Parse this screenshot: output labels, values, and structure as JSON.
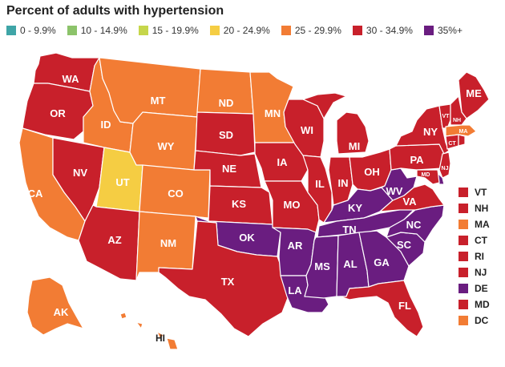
{
  "title": "Percent of adults with hypertension",
  "legend": [
    {
      "label": "0 - 9.9%",
      "color": "#3fa5a7"
    },
    {
      "label": "10 - 14.9%",
      "color": "#8cc36a"
    },
    {
      "label": "15 - 19.9%",
      "color": "#c6d64b"
    },
    {
      "label": "20 - 24.9%",
      "color": "#f5cd43"
    },
    {
      "label": "25 - 29.9%",
      "color": "#f27c34"
    },
    {
      "label": "30 - 34.9%",
      "color": "#c8202b"
    },
    {
      "label": "35%+",
      "color": "#6a1d80"
    }
  ],
  "small_states": [
    {
      "label": "VT",
      "color": "#c8202b"
    },
    {
      "label": "NH",
      "color": "#c8202b"
    },
    {
      "label": "MA",
      "color": "#f27c34"
    },
    {
      "label": "CT",
      "color": "#c8202b"
    },
    {
      "label": "RI",
      "color": "#c8202b"
    },
    {
      "label": "NJ",
      "color": "#c8202b"
    },
    {
      "label": "DE",
      "color": "#6a1d80"
    },
    {
      "label": "MD",
      "color": "#c8202b"
    },
    {
      "label": "DC",
      "color": "#f27c34"
    }
  ],
  "states": [
    {
      "id": "WA",
      "bin": 5
    },
    {
      "id": "OR",
      "bin": 5
    },
    {
      "id": "CA",
      "bin": 4
    },
    {
      "id": "NV",
      "bin": 5
    },
    {
      "id": "ID",
      "bin": 4
    },
    {
      "id": "MT",
      "bin": 4
    },
    {
      "id": "WY",
      "bin": 4
    },
    {
      "id": "UT",
      "bin": 3
    },
    {
      "id": "AZ",
      "bin": 5
    },
    {
      "id": "CO",
      "bin": 4
    },
    {
      "id": "NM",
      "bin": 4
    },
    {
      "id": "ND",
      "bin": 4
    },
    {
      "id": "SD",
      "bin": 5
    },
    {
      "id": "NE",
      "bin": 5
    },
    {
      "id": "KS",
      "bin": 5
    },
    {
      "id": "OK",
      "bin": 6
    },
    {
      "id": "TX",
      "bin": 5
    },
    {
      "id": "MN",
      "bin": 4
    },
    {
      "id": "IA",
      "bin": 5
    },
    {
      "id": "MO",
      "bin": 5
    },
    {
      "id": "AR",
      "bin": 6
    },
    {
      "id": "LA",
      "bin": 6
    },
    {
      "id": "WI",
      "bin": 5
    },
    {
      "id": "IL",
      "bin": 5
    },
    {
      "id": "MI",
      "bin": 5
    },
    {
      "id": "IN",
      "bin": 5
    },
    {
      "id": "OH",
      "bin": 5
    },
    {
      "id": "KY",
      "bin": 6
    },
    {
      "id": "TN",
      "bin": 6
    },
    {
      "id": "MS",
      "bin": 6
    },
    {
      "id": "AL",
      "bin": 6
    },
    {
      "id": "GA",
      "bin": 6
    },
    {
      "id": "FL",
      "bin": 5
    },
    {
      "id": "SC",
      "bin": 6
    },
    {
      "id": "NC",
      "bin": 6
    },
    {
      "id": "VA",
      "bin": 5
    },
    {
      "id": "WV",
      "bin": 6
    },
    {
      "id": "PA",
      "bin": 5
    },
    {
      "id": "NY",
      "bin": 5
    },
    {
      "id": "ME",
      "bin": 5
    },
    {
      "id": "VT",
      "bin": 5
    },
    {
      "id": "NH",
      "bin": 5
    },
    {
      "id": "MA",
      "bin": 4
    },
    {
      "id": "CT",
      "bin": 5
    },
    {
      "id": "RI",
      "bin": 5
    },
    {
      "id": "NJ",
      "bin": 5
    },
    {
      "id": "DE",
      "bin": 6
    },
    {
      "id": "MD",
      "bin": 5
    },
    {
      "id": "AK",
      "bin": 4
    },
    {
      "id": "HI",
      "bin": 4
    }
  ],
  "border_color": "#ffffff",
  "label_color": "#ffffff"
}
